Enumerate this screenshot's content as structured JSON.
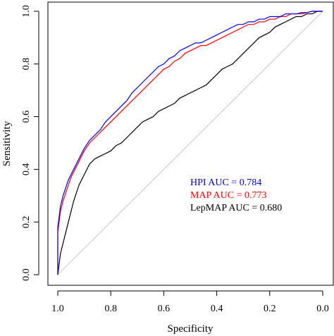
{
  "chart_data": {
    "type": "line",
    "xlabel": "Specificity",
    "ylabel": "Sensitivity",
    "xlim": [
      1.0,
      0.0
    ],
    "ylim": [
      0.0,
      1.0
    ],
    "x_reversed": true,
    "x_ticks": [
      1.0,
      0.8,
      0.6,
      0.4,
      0.2,
      0.0
    ],
    "x_tick_labels": [
      "1.0",
      "0.8",
      "0.6",
      "0.4",
      "0.2",
      "0.0"
    ],
    "y_ticks": [
      0.0,
      0.2,
      0.4,
      0.6,
      0.8,
      1.0
    ],
    "y_tick_labels": [
      "0.0",
      "0.2",
      "0.4",
      "0.6",
      "0.8",
      "1.0"
    ],
    "grid": false,
    "diagonal_reference": {
      "color": "#c8c8c8",
      "x": [
        1.0,
        0.0
      ],
      "y": [
        0.0,
        1.0
      ]
    },
    "legend_placement": "center-right",
    "series": [
      {
        "legend_text": "HPI AUC = 0.784",
        "color": "#0000ff",
        "x": [
          1.0,
          1.0,
          0.995,
          0.99,
          0.98,
          0.97,
          0.96,
          0.95,
          0.94,
          0.93,
          0.92,
          0.91,
          0.9,
          0.88,
          0.86,
          0.84,
          0.82,
          0.8,
          0.78,
          0.76,
          0.74,
          0.72,
          0.7,
          0.68,
          0.66,
          0.64,
          0.62,
          0.6,
          0.58,
          0.56,
          0.54,
          0.52,
          0.5,
          0.48,
          0.46,
          0.44,
          0.42,
          0.4,
          0.38,
          0.36,
          0.34,
          0.32,
          0.3,
          0.28,
          0.26,
          0.24,
          0.22,
          0.2,
          0.18,
          0.16,
          0.14,
          0.12,
          0.1,
          0.08,
          0.06,
          0.04,
          0.02,
          0.0
        ],
        "y": [
          0.0,
          0.18,
          0.22,
          0.26,
          0.3,
          0.33,
          0.36,
          0.38,
          0.4,
          0.42,
          0.44,
          0.46,
          0.48,
          0.51,
          0.53,
          0.55,
          0.58,
          0.6,
          0.62,
          0.64,
          0.66,
          0.69,
          0.71,
          0.73,
          0.75,
          0.77,
          0.79,
          0.8,
          0.82,
          0.83,
          0.85,
          0.86,
          0.87,
          0.88,
          0.88,
          0.89,
          0.9,
          0.91,
          0.92,
          0.93,
          0.94,
          0.95,
          0.95,
          0.96,
          0.96,
          0.97,
          0.97,
          0.98,
          0.98,
          0.98,
          0.99,
          0.99,
          0.99,
          0.995,
          0.995,
          1.0,
          1.0,
          1.0
        ]
      },
      {
        "legend_text": "MAP AUC = 0.773",
        "color": "#ff0000",
        "x": [
          1.0,
          1.0,
          0.995,
          0.99,
          0.98,
          0.97,
          0.96,
          0.95,
          0.94,
          0.93,
          0.92,
          0.91,
          0.9,
          0.88,
          0.86,
          0.84,
          0.82,
          0.8,
          0.78,
          0.76,
          0.74,
          0.72,
          0.7,
          0.68,
          0.66,
          0.64,
          0.62,
          0.6,
          0.58,
          0.56,
          0.54,
          0.52,
          0.5,
          0.48,
          0.46,
          0.44,
          0.42,
          0.4,
          0.38,
          0.36,
          0.34,
          0.32,
          0.3,
          0.28,
          0.26,
          0.24,
          0.22,
          0.2,
          0.18,
          0.16,
          0.14,
          0.12,
          0.1,
          0.08,
          0.06,
          0.04,
          0.02,
          0.0
        ],
        "y": [
          0.0,
          0.16,
          0.2,
          0.24,
          0.28,
          0.31,
          0.34,
          0.37,
          0.39,
          0.41,
          0.43,
          0.45,
          0.47,
          0.5,
          0.52,
          0.54,
          0.56,
          0.58,
          0.6,
          0.62,
          0.64,
          0.66,
          0.68,
          0.7,
          0.72,
          0.74,
          0.76,
          0.78,
          0.79,
          0.81,
          0.82,
          0.84,
          0.85,
          0.86,
          0.87,
          0.87,
          0.88,
          0.89,
          0.9,
          0.91,
          0.92,
          0.93,
          0.94,
          0.95,
          0.95,
          0.96,
          0.96,
          0.97,
          0.97,
          0.98,
          0.98,
          0.99,
          0.99,
          0.99,
          0.995,
          1.0,
          1.0,
          1.0
        ]
      },
      {
        "legend_text": "LepMAP AUC = 0.680",
        "color": "#000000",
        "x": [
          1.0,
          0.995,
          0.99,
          0.98,
          0.97,
          0.96,
          0.95,
          0.94,
          0.93,
          0.92,
          0.91,
          0.9,
          0.88,
          0.86,
          0.84,
          0.82,
          0.8,
          0.78,
          0.76,
          0.74,
          0.72,
          0.7,
          0.68,
          0.66,
          0.64,
          0.62,
          0.6,
          0.58,
          0.56,
          0.54,
          0.52,
          0.5,
          0.48,
          0.46,
          0.44,
          0.42,
          0.4,
          0.38,
          0.36,
          0.34,
          0.32,
          0.3,
          0.28,
          0.26,
          0.24,
          0.22,
          0.2,
          0.18,
          0.16,
          0.14,
          0.12,
          0.1,
          0.08,
          0.06,
          0.04,
          0.02,
          0.0
        ],
        "y": [
          0.0,
          0.04,
          0.08,
          0.12,
          0.16,
          0.2,
          0.24,
          0.28,
          0.31,
          0.34,
          0.36,
          0.38,
          0.42,
          0.44,
          0.45,
          0.46,
          0.47,
          0.49,
          0.5,
          0.52,
          0.54,
          0.56,
          0.58,
          0.59,
          0.6,
          0.62,
          0.63,
          0.64,
          0.65,
          0.67,
          0.68,
          0.69,
          0.7,
          0.71,
          0.72,
          0.74,
          0.76,
          0.78,
          0.79,
          0.8,
          0.82,
          0.84,
          0.86,
          0.88,
          0.9,
          0.91,
          0.92,
          0.94,
          0.95,
          0.96,
          0.97,
          0.98,
          0.98,
          0.99,
          0.99,
          1.0,
          1.0
        ]
      }
    ]
  }
}
